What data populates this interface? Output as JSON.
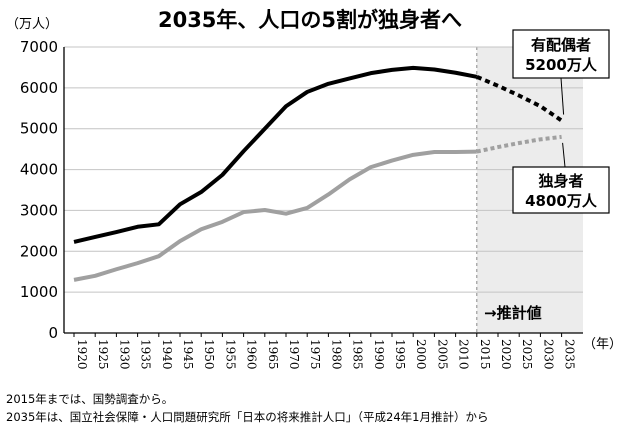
{
  "title": "2035年、人口の5割が独身者へ",
  "y_unit": "（万人）",
  "x_unit": "（年）",
  "projection_label": "→推計値",
  "callouts": {
    "married": {
      "line1": "有配偶者",
      "line2": "5200万人"
    },
    "single": {
      "line1": "独身者",
      "line2": "4800万人"
    }
  },
  "notes": [
    "2015年までは、国勢調査から。",
    "2035年は、国立社会保障・人口問題研究所「日本の将来推計人口」（平成24年1月推計）から"
  ],
  "colors": {
    "married": "#000000",
    "single": "#a0a0a0",
    "projection_bg": "#ececec"
  },
  "chart_data": {
    "type": "line",
    "title": "2035年、人口の5割が独身者へ",
    "ylabel": "（万人）",
    "xlabel": "（年）",
    "ylim": [
      0,
      7000
    ],
    "yticks": [
      0,
      1000,
      2000,
      3000,
      4000,
      5000,
      6000,
      7000
    ],
    "x": [
      1920,
      1925,
      1930,
      1935,
      1940,
      1945,
      1950,
      1955,
      1960,
      1965,
      1970,
      1975,
      1980,
      1985,
      1990,
      1995,
      2000,
      2005,
      2010,
      2015,
      2020,
      2025,
      2030,
      2035
    ],
    "projection_start": 2015,
    "grid": true,
    "series": [
      {
        "name": "有配偶者",
        "style": "solid-then-dotted",
        "values": [
          2230,
          2350,
          2470,
          2600,
          2660,
          3150,
          3450,
          3870,
          4450,
          5000,
          5550,
          5900,
          6100,
          6230,
          6360,
          6440,
          6490,
          6450,
          6370,
          6270,
          6050,
          5810,
          5550,
          5200
        ]
      },
      {
        "name": "独身者",
        "style": "solid-then-dotted",
        "values": [
          1300,
          1400,
          1560,
          1710,
          1880,
          2250,
          2540,
          2720,
          2960,
          3010,
          2920,
          3060,
          3390,
          3760,
          4060,
          4220,
          4360,
          4430,
          4430,
          4440,
          4550,
          4650,
          4740,
          4800
        ]
      }
    ]
  }
}
